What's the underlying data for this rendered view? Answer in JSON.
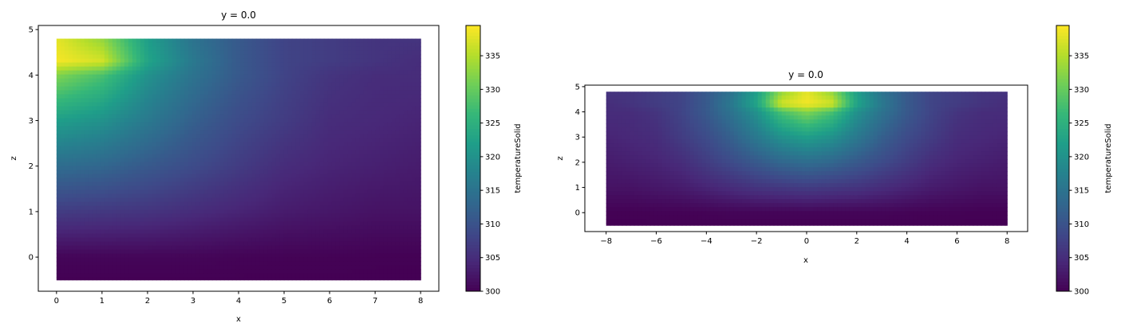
{
  "chart_data": [
    {
      "type": "heatmap",
      "title": "y = 0.0",
      "xlabel": "x",
      "ylabel": "z",
      "xlim": [
        -0.4,
        8.4
      ],
      "ylim": [
        -0.75,
        5.09
      ],
      "xticks": [
        "0",
        "1",
        "2",
        "3",
        "4",
        "5",
        "6",
        "7",
        "8"
      ],
      "yticks": [
        "0",
        "1",
        "2",
        "3",
        "4",
        "5"
      ],
      "grid": false,
      "x": [
        0,
        1,
        2,
        3,
        4,
        5,
        6,
        7,
        8
      ],
      "z": [
        4.8,
        4.3,
        4,
        3,
        2,
        1,
        0,
        -0.5
      ],
      "values": [
        [
          338,
          333,
          322,
          315,
          311,
          308,
          307,
          306,
          306
        ],
        [
          339,
          337,
          323,
          316,
          311,
          308,
          307,
          306,
          305
        ],
        [
          332,
          328,
          320,
          315,
          311,
          308,
          306,
          305,
          305
        ],
        [
          322,
          320,
          316,
          312,
          309,
          307,
          305,
          304.5,
          304
        ],
        [
          314,
          313,
          311,
          309,
          307,
          305,
          304,
          303.5,
          303
        ],
        [
          307,
          306.5,
          306,
          305,
          304,
          303,
          302.5,
          302,
          302
        ],
        [
          300.5,
          300.5,
          300.5,
          300.5,
          300.3,
          300.2,
          300.2,
          300.1,
          300.1
        ],
        [
          300,
          300,
          300,
          300,
          300,
          300,
          300,
          300,
          300
        ]
      ],
      "colorbar": {
        "label": "temperatureSolid",
        "cmap": "viridis",
        "range": [
          300,
          339.5
        ],
        "ticks": [
          "300",
          "305",
          "310",
          "315",
          "320",
          "325",
          "330",
          "335"
        ]
      }
    },
    {
      "type": "heatmap",
      "title": "y = 0.0",
      "xlabel": "x",
      "ylabel": "z",
      "xlim": [
        -8.85,
        8.82
      ],
      "ylim": [
        -0.75,
        5.06
      ],
      "xticks": [
        "−8",
        "−6",
        "−4",
        "−2",
        "0",
        "2",
        "4",
        "6",
        "8"
      ],
      "yticks": [
        "0",
        "1",
        "2",
        "3",
        "4",
        "5"
      ],
      "grid": false,
      "x": [
        -8,
        -7,
        -6,
        -5,
        -4,
        -3,
        -2,
        -1,
        0,
        1,
        2,
        3,
        4,
        5,
        6,
        7,
        8
      ],
      "z": [
        4.8,
        4.3,
        4,
        3,
        2,
        1,
        0,
        -0.5
      ],
      "values": [
        [
          306,
          306,
          307,
          308,
          311,
          315,
          322,
          333,
          338,
          333,
          322,
          315,
          311,
          308,
          307,
          306,
          306
        ],
        [
          305,
          306,
          307,
          308,
          311,
          316,
          323,
          337,
          339,
          337,
          323,
          316,
          311,
          308,
          307,
          306,
          305
        ],
        [
          305,
          305,
          306,
          308,
          311,
          315,
          320,
          328,
          332,
          328,
          320,
          315,
          311,
          308,
          306,
          305,
          305
        ],
        [
          304,
          304.5,
          305,
          307,
          309,
          312,
          316,
          320,
          322,
          320,
          316,
          312,
          309,
          307,
          305,
          304.5,
          304
        ],
        [
          303,
          303.5,
          304,
          305,
          307,
          309,
          311,
          313,
          314,
          313,
          311,
          309,
          307,
          305,
          304,
          303.5,
          303
        ],
        [
          302,
          302,
          302.5,
          303,
          304,
          305,
          306,
          306.5,
          307,
          306.5,
          306,
          305,
          304,
          303,
          302.5,
          302,
          302
        ],
        [
          300.1,
          300.1,
          300.2,
          300.2,
          300.3,
          300.5,
          300.5,
          300.5,
          300.5,
          300.5,
          300.5,
          300.5,
          300.3,
          300.2,
          300.2,
          300.1,
          300.1
        ],
        [
          300,
          300,
          300,
          300,
          300,
          300,
          300,
          300,
          300,
          300,
          300,
          300,
          300,
          300,
          300,
          300,
          300
        ]
      ],
      "colorbar": {
        "label": "temperatureSolid",
        "cmap": "viridis",
        "range": [
          300,
          339.5
        ],
        "ticks": [
          "300",
          "305",
          "310",
          "315",
          "320",
          "325",
          "330",
          "335"
        ]
      }
    }
  ]
}
